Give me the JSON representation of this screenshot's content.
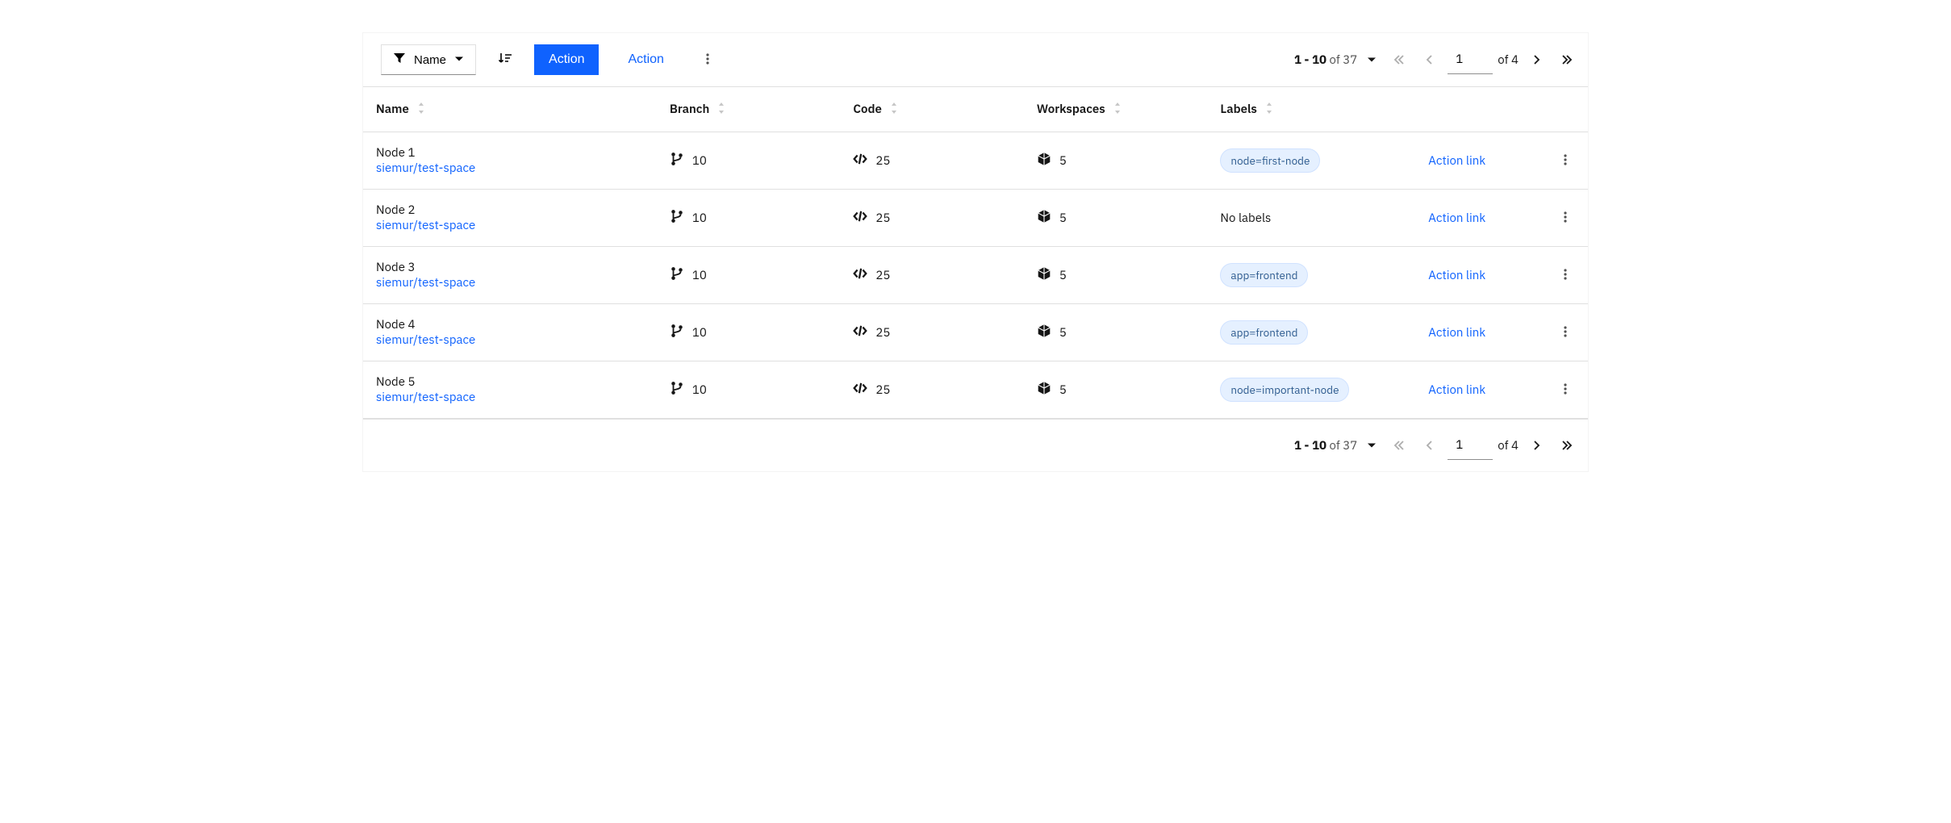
{
  "colors": {
    "primary": "#0f62fe",
    "link": "#0f62fe",
    "text": "#161616",
    "muted": "#525252",
    "border": "#e0e0e0",
    "label_bg": "#e5f0ff",
    "label_border": "#d0e2ff",
    "label_text": "#2f5c8f",
    "sort_icon": "#c6c6c6",
    "background": "#ffffff"
  },
  "toolbar": {
    "filter_label": "Name",
    "primary_action": "Action",
    "secondary_action": "Action"
  },
  "pagination": {
    "range_start": 1,
    "range_end": 10,
    "of_word": "of",
    "total_items": 37,
    "items_display": "1 - 10",
    "current_page": "1",
    "total_pages": 4,
    "pages_display": "of 4",
    "prev_disabled": true,
    "next_disabled": false
  },
  "columns": [
    {
      "key": "name",
      "label": "Name",
      "sortable": true
    },
    {
      "key": "branch",
      "label": "Branch",
      "sortable": true
    },
    {
      "key": "code",
      "label": "Code",
      "sortable": true
    },
    {
      "key": "workspaces",
      "label": "Workspaces",
      "sortable": true
    },
    {
      "key": "labels",
      "label": "Labels",
      "sortable": true
    }
  ],
  "rows": [
    {
      "name": "Node 1",
      "repo": "siemur/test-space",
      "branch": 10,
      "code": 25,
      "workspaces": 5,
      "label": "node=first-node",
      "has_label": true,
      "action": "Action link"
    },
    {
      "name": "Node 2",
      "repo": "siemur/test-space",
      "branch": 10,
      "code": 25,
      "workspaces": 5,
      "label": "No labels",
      "has_label": false,
      "action": "Action link"
    },
    {
      "name": "Node 3",
      "repo": "siemur/test-space",
      "branch": 10,
      "code": 25,
      "workspaces": 5,
      "label": "app=frontend",
      "has_label": true,
      "action": "Action link"
    },
    {
      "name": "Node 4",
      "repo": "siemur/test-space",
      "branch": 10,
      "code": 25,
      "workspaces": 5,
      "label": "app=frontend",
      "has_label": true,
      "action": "Action link"
    },
    {
      "name": "Node 5",
      "repo": "siemur/test-space",
      "branch": 10,
      "code": 25,
      "workspaces": 5,
      "label": "node=important-node",
      "has_label": true,
      "action": "Action link"
    }
  ]
}
